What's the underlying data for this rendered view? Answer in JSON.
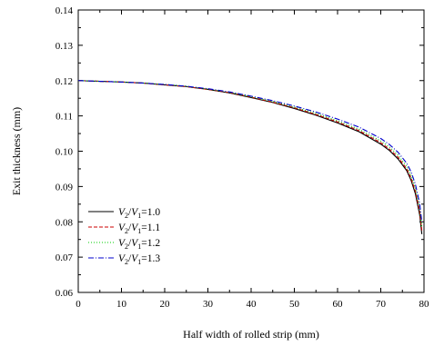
{
  "chart_data": {
    "type": "line",
    "title": "",
    "xlabel": "Half width of rolled strip (mm)",
    "ylabel": "Exit thickness (mm)",
    "xlim": [
      0,
      80
    ],
    "ylim": [
      0.06,
      0.14
    ],
    "xticks": [
      "0",
      "10",
      "20",
      "30",
      "40",
      "50",
      "60",
      "70",
      "80"
    ],
    "yticks": [
      "0.06",
      "0.07",
      "0.08",
      "0.09",
      "0.10",
      "0.11",
      "0.12",
      "0.13",
      "0.14"
    ],
    "grid": false,
    "legend_position": "bottom-left",
    "x": [
      0,
      5,
      10,
      15,
      20,
      25,
      30,
      35,
      40,
      45,
      50,
      55,
      60,
      65,
      70,
      72,
      74,
      76,
      77,
      78,
      79,
      79.5
    ],
    "series": [
      {
        "name": "V2/V1=1.0",
        "legend": {
          "v": "V",
          "a": "2",
          "slash": "/",
          "b": "1",
          "rest": "=1.0"
        },
        "color": "#000000",
        "dash": "",
        "values": [
          0.12,
          0.1198,
          0.1196,
          0.1193,
          0.1188,
          0.1183,
          0.1175,
          0.1165,
          0.1152,
          0.1138,
          0.1121,
          0.1102,
          0.108,
          0.1055,
          0.102,
          0.1002,
          0.0978,
          0.0945,
          0.0918,
          0.088,
          0.082,
          0.0765
        ]
      },
      {
        "name": "V2/V1=1.1",
        "legend": {
          "v": "V",
          "a": "2",
          "slash": "/",
          "b": "1",
          "rest": "=1.1"
        },
        "color": "#cc0000",
        "dash": "4,2",
        "values": [
          0.12,
          0.1198,
          0.1196,
          0.1193,
          0.1188,
          0.1183,
          0.1175,
          0.1166,
          0.1153,
          0.1139,
          0.1123,
          0.1104,
          0.1083,
          0.1058,
          0.1024,
          0.1006,
          0.0983,
          0.095,
          0.0924,
          0.0887,
          0.083,
          0.0775
        ]
      },
      {
        "name": "V2/V1=1.2",
        "legend": {
          "v": "V",
          "a": "2",
          "slash": "/",
          "b": "1",
          "rest": "=1.2"
        },
        "color": "#00cc00",
        "dash": "1,2",
        "values": [
          0.12,
          0.1198,
          0.1196,
          0.1193,
          0.1189,
          0.1184,
          0.1176,
          0.1167,
          0.1154,
          0.1141,
          0.1125,
          0.1107,
          0.1086,
          0.1062,
          0.1029,
          0.1012,
          0.0989,
          0.0957,
          0.0932,
          0.0896,
          0.084,
          0.0785
        ]
      },
      {
        "name": "V2/V1=1.3",
        "legend": {
          "v": "V",
          "a": "2",
          "slash": "/",
          "b": "1",
          "rest": "=1.3"
        },
        "color": "#0000cc",
        "dash": "6,2,1,2",
        "values": [
          0.12,
          0.1198,
          0.1196,
          0.1193,
          0.1189,
          0.1184,
          0.1177,
          0.1168,
          0.1156,
          0.1143,
          0.1128,
          0.1111,
          0.1091,
          0.1068,
          0.1036,
          0.1019,
          0.0997,
          0.0966,
          0.0942,
          0.0907,
          0.0852,
          0.08
        ]
      }
    ]
  }
}
